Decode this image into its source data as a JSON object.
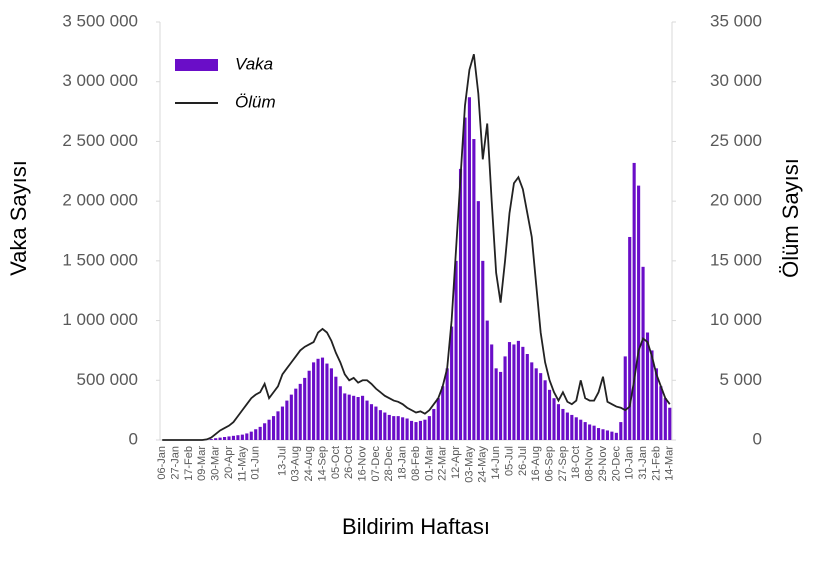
{
  "chart_data": {
    "type": "bar_line",
    "xlabel": "Bildirim Haftası",
    "ylabel": "Vaka Sayısı",
    "y2label": "Ölüm Sayısı",
    "legend": "upper left",
    "categories": [
      "06-Jan",
      null,
      null,
      "27-Jan",
      null,
      null,
      "17-Feb",
      null,
      null,
      "09-Mar",
      null,
      null,
      "30-Mar",
      null,
      null,
      "20-Apr",
      null,
      null,
      "11-May",
      null,
      null,
      "01-Jun",
      null,
      null,
      null,
      null,
      null,
      "13-Jul",
      null,
      null,
      "03-Aug",
      null,
      null,
      "24-Aug",
      null,
      null,
      "14-Sep",
      null,
      null,
      "05-Oct",
      null,
      null,
      "26-Oct",
      null,
      null,
      "16-Nov",
      null,
      null,
      "07-Dec",
      null,
      null,
      "28-Dec",
      null,
      null,
      "18-Jan",
      null,
      null,
      "08-Feb",
      null,
      null,
      "01-Mar",
      null,
      null,
      "22-Mar",
      null,
      null,
      "12-Apr",
      null,
      null,
      "03-May",
      null,
      null,
      "24-May",
      null,
      null,
      "14-Jun",
      null,
      null,
      "05-Jul",
      null,
      null,
      "26-Jul",
      null,
      null,
      "16-Aug",
      null,
      null,
      "06-Sep",
      null,
      null,
      "27-Sep",
      null,
      null,
      "18-Oct",
      null,
      null,
      "08-Nov",
      null,
      null,
      "29-Nov",
      null,
      null,
      "20-Dec",
      null,
      null,
      "10-Jan",
      null,
      null,
      "31-Jan",
      null,
      null,
      "21-Feb",
      null,
      null,
      "14-Mar"
    ],
    "series": [
      {
        "name": "Vaka",
        "type": "bar",
        "color": "#6a0dc8",
        "values": [
          0,
          0,
          0,
          0,
          0,
          0,
          0,
          0,
          0,
          0,
          2000,
          8000,
          15000,
          20000,
          25000,
          30000,
          35000,
          40000,
          45000,
          55000,
          70000,
          90000,
          110000,
          140000,
          170000,
          200000,
          240000,
          280000,
          330000,
          380000,
          430000,
          470000,
          520000,
          580000,
          650000,
          680000,
          690000,
          640000,
          600000,
          530000,
          450000,
          390000,
          380000,
          370000,
          360000,
          370000,
          330000,
          300000,
          280000,
          250000,
          230000,
          210000,
          200000,
          200000,
          190000,
          180000,
          160000,
          150000,
          160000,
          170000,
          200000,
          260000,
          350000,
          450000,
          600000,
          950000,
          1500000,
          2270000,
          2700000,
          2870000,
          2520000,
          2000000,
          1500000,
          1000000,
          800000,
          600000,
          570000,
          700000,
          820000,
          800000,
          830000,
          780000,
          720000,
          650000,
          600000,
          560000,
          500000,
          420000,
          350000,
          300000,
          260000,
          230000,
          210000,
          190000,
          170000,
          150000,
          130000,
          120000,
          100000,
          90000,
          80000,
          70000,
          60000,
          150000,
          700000,
          1700000,
          2320000,
          2130000,
          1450000,
          900000,
          750000,
          600000,
          450000,
          350000,
          270000
        ]
      },
      {
        "name": "Ölüm",
        "type": "line",
        "axis": "y2",
        "color": "#222222",
        "values": [
          0,
          0,
          0,
          0,
          0,
          0,
          0,
          0,
          0,
          0,
          50,
          200,
          500,
          800,
          1000,
          1200,
          1500,
          2000,
          2500,
          3000,
          3500,
          3800,
          4000,
          4700,
          3500,
          4000,
          4500,
          5500,
          6000,
          6500,
          7000,
          7500,
          7800,
          8000,
          8200,
          9000,
          9300,
          9000,
          8300,
          7300,
          6500,
          5500,
          5000,
          5200,
          4800,
          5000,
          5000,
          4700,
          4300,
          4000,
          3700,
          3500,
          3300,
          3200,
          3000,
          2700,
          2500,
          2300,
          2400,
          2200,
          2500,
          3000,
          3500,
          4500,
          6000,
          10000,
          16000,
          22000,
          28000,
          31000,
          32300,
          29000,
          23500,
          26500,
          20000,
          14000,
          11500,
          15000,
          19000,
          21500,
          22000,
          21000,
          19000,
          17000,
          13000,
          9000,
          6500,
          5000,
          4000,
          3300,
          4000,
          3200,
          3000,
          3300,
          5000,
          3500,
          3300,
          3300,
          4000,
          5300,
          3200,
          3000,
          2800,
          2700,
          2500,
          2800,
          5000,
          7500,
          8500,
          8200,
          7000,
          5500,
          4500,
          3500,
          3000
        ]
      }
    ],
    "ylim": [
      0,
      3500000
    ],
    "yticks": [
      0,
      {
        "value": 500000,
        "label": "500 000"
      },
      {
        "value": 1000000,
        "label": "1 000 000"
      },
      {
        "value": 1500000,
        "label": "1 500 000"
      },
      {
        "value": 2000000,
        "label": "2 000 000"
      },
      {
        "value": 2500000,
        "label": "2 500 000"
      },
      {
        "value": 3000000,
        "label": "3 000 000"
      },
      {
        "value": 3500000,
        "label": "3 500 000"
      }
    ],
    "y2lim": [
      0,
      35000
    ],
    "y2ticks": [
      0,
      {
        "value": 5000,
        "label": "5 000"
      },
      {
        "value": 10000,
        "label": "10 000"
      },
      {
        "value": 15000,
        "label": "15 000"
      },
      {
        "value": 20000,
        "label": "20 000"
      },
      {
        "value": 25000,
        "label": "25 000"
      },
      {
        "value": 30000,
        "label": "30 000"
      },
      {
        "value": 35000,
        "label": "35 000"
      }
    ]
  }
}
